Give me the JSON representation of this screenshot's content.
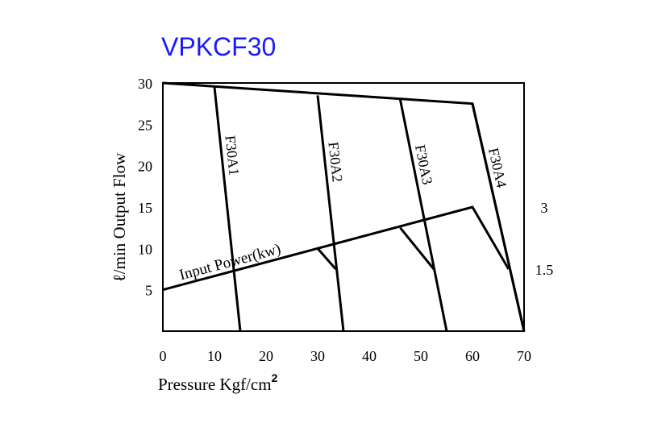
{
  "chart_data": {
    "type": "line",
    "title": "VPKCF30",
    "title_color": "#1a1aff",
    "xlabel": "Pressure Kgf/cm",
    "xlabel_superscript": "2",
    "ylabel": "ℓ/min Output Flow",
    "xlim": [
      0,
      70
    ],
    "ylim": [
      0,
      30
    ],
    "x_ticks": [
      "0",
      "10",
      "20",
      "30",
      "40",
      "50",
      "60",
      "70"
    ],
    "y_ticks": [
      "5",
      "10",
      "15",
      "20",
      "25",
      "30"
    ],
    "y2_ticks": [
      "3",
      "1.5"
    ],
    "y2_tick_positions": [
      15,
      7.5
    ],
    "grid": false,
    "envelope": [
      [
        0,
        30
      ],
      [
        60,
        27.5
      ],
      [
        70,
        0
      ]
    ],
    "series": [
      {
        "name": "F30A1",
        "points": [
          [
            10,
            29.5
          ],
          [
            15,
            0
          ]
        ]
      },
      {
        "name": "F30A2",
        "points": [
          [
            30,
            28.5
          ],
          [
            35,
            0
          ]
        ]
      },
      {
        "name": "F30A3",
        "points": [
          [
            46,
            28
          ],
          [
            55,
            0
          ]
        ]
      },
      {
        "name": "F30A4",
        "points": [
          [
            60,
            27.5
          ],
          [
            70,
            0
          ]
        ]
      }
    ],
    "input_power": {
      "label": "Input Power(kw)",
      "line": [
        [
          0,
          5
        ],
        [
          60,
          15
        ],
        [
          67,
          7.5
        ]
      ],
      "drops": [
        [
          [
            30,
            10
          ],
          [
            33.5,
            7.5
          ]
        ],
        [
          [
            46,
            12.5
          ],
          [
            52.5,
            7.5
          ]
        ]
      ]
    }
  }
}
